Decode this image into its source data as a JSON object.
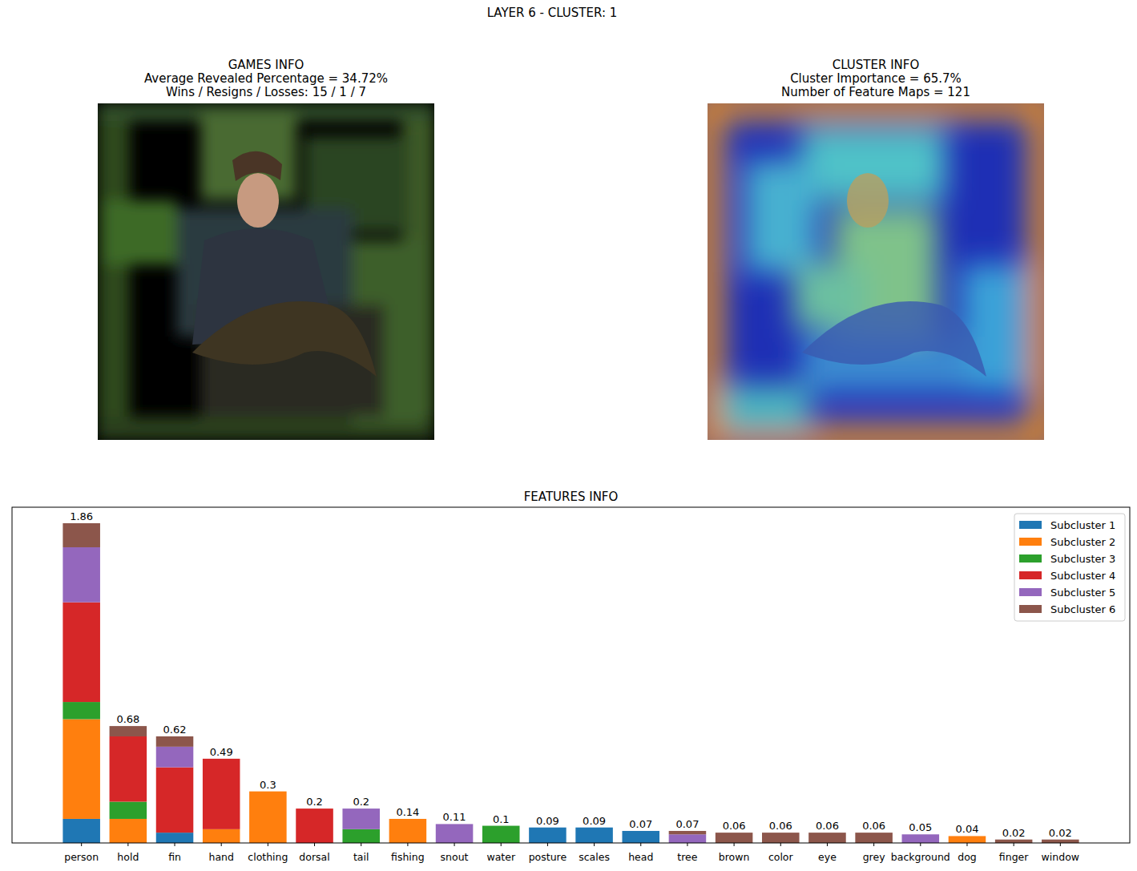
{
  "figure_title": "LAYER 6 - CLUSTER: 1",
  "panels": [
    {
      "title": [
        "GAMES INFO",
        "Average Revealed Percentage = 34.72%",
        "Wins / Resigns / Losses: 15 / 1 / 7"
      ]
    },
    {
      "title": [
        "CLUSTER INFO",
        "Cluster Importance = 65.7%",
        "Number of Feature Maps = 121"
      ]
    }
  ],
  "chart_data": {
    "type": "bar",
    "title": "FEATURES INFO",
    "stacked": true,
    "legend": "upper right",
    "tick_labels": "x",
    "categories": [
      "person",
      "hold",
      "fin",
      "hand",
      "clothing",
      "dorsal",
      "tail",
      "fishing",
      "snout",
      "water",
      "posture",
      "scales",
      "head",
      "tree",
      "brown",
      "color",
      "eye",
      "grey",
      "background",
      "dog",
      "finger",
      "window"
    ],
    "ylim": [
      0,
      1.953
    ],
    "series": [
      {
        "name": "Subcluster 1",
        "color": "#1f77b4",
        "values": [
          0.14,
          0,
          0.06,
          0,
          0,
          0,
          0,
          0,
          0,
          0,
          0.09,
          0.09,
          0.07,
          0,
          0,
          0,
          0,
          0,
          0,
          0,
          0,
          0
        ]
      },
      {
        "name": "Subcluster 2",
        "color": "#ff7f0e",
        "values": [
          0.58,
          0.14,
          0,
          0.08,
          0.3,
          0,
          0,
          0.14,
          0,
          0,
          0,
          0,
          0,
          0,
          0,
          0,
          0,
          0,
          0,
          0.04,
          0,
          0
        ]
      },
      {
        "name": "Subcluster 3",
        "color": "#2ca02c",
        "values": [
          0.1,
          0.1,
          0,
          0,
          0,
          0,
          0.08,
          0,
          0,
          0.1,
          0,
          0,
          0,
          0,
          0,
          0,
          0,
          0,
          0,
          0,
          0,
          0
        ]
      },
      {
        "name": "Subcluster 4",
        "color": "#d62728",
        "values": [
          0.58,
          0.38,
          0.38,
          0.41,
          0,
          0.2,
          0,
          0,
          0,
          0,
          0,
          0,
          0,
          0,
          0,
          0,
          0,
          0,
          0,
          0,
          0,
          0
        ]
      },
      {
        "name": "Subcluster 5",
        "color": "#9467bd",
        "values": [
          0.32,
          0,
          0.12,
          0,
          0,
          0,
          0.12,
          0,
          0.11,
          0,
          0,
          0,
          0,
          0.05,
          0,
          0,
          0,
          0,
          0.05,
          0,
          0,
          0
        ]
      },
      {
        "name": "Subcluster 6",
        "color": "#8c564b",
        "values": [
          0.14,
          0.06,
          0.06,
          0,
          0,
          0,
          0,
          0,
          0,
          0,
          0,
          0,
          0,
          0.02,
          0.06,
          0.06,
          0.06,
          0.06,
          0,
          0,
          0.02,
          0.02
        ]
      }
    ],
    "totals": [
      1.86,
      0.68,
      0.62,
      0.49,
      0.3,
      0.2,
      0.2,
      0.14,
      0.11,
      0.1,
      0.09,
      0.09,
      0.07,
      0.07,
      0.06,
      0.06,
      0.06,
      0.06,
      0.05,
      0.04,
      0.02,
      0.02
    ]
  }
}
